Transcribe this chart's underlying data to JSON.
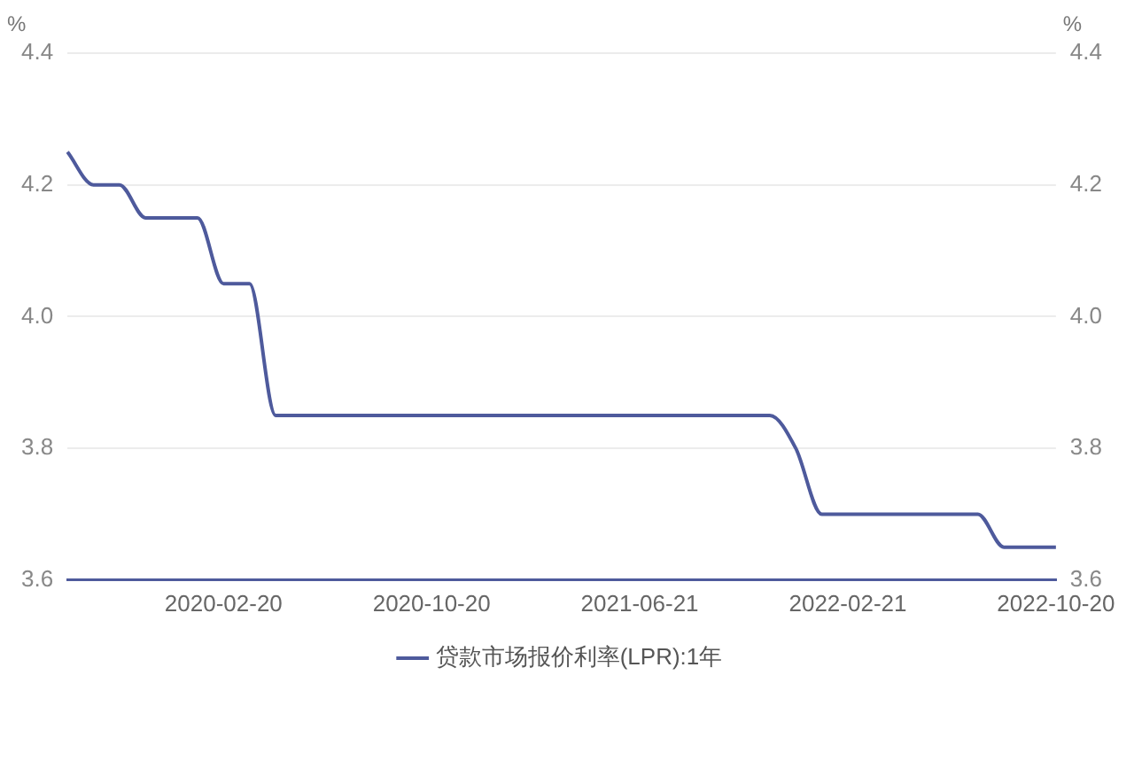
{
  "chart_data": {
    "type": "line",
    "ylabel": "%",
    "y2label": "%",
    "categories": [
      null,
      null,
      null,
      null,
      null,
      null,
      "2020-02-20",
      null,
      null,
      null,
      null,
      null,
      null,
      null,
      "2020-10-20",
      null,
      null,
      null,
      null,
      null,
      null,
      null,
      "2021-06-21",
      null,
      null,
      null,
      null,
      null,
      null,
      null,
      "2022-02-21",
      null,
      null,
      null,
      null,
      null,
      null,
      null,
      "2022-10-20"
    ],
    "series": [
      {
        "name": "贷款市场报价利率(LPR):1年",
        "color": "#4e5a9c",
        "values": [
          4.25,
          4.2,
          4.2,
          4.15,
          4.15,
          4.15,
          4.05,
          4.05,
          3.85,
          3.85,
          3.85,
          3.85,
          3.85,
          3.85,
          3.85,
          3.85,
          3.85,
          3.85,
          3.85,
          3.85,
          3.85,
          3.85,
          3.85,
          3.85,
          3.85,
          3.85,
          3.85,
          3.85,
          3.8,
          3.7,
          3.7,
          3.7,
          3.7,
          3.7,
          3.7,
          3.7,
          3.65,
          3.65,
          3.65
        ]
      }
    ],
    "ylim": [
      3.6,
      4.4
    ],
    "yticks": [
      3.6,
      3.8,
      {
        "value": 4,
        "label": "4.0"
      },
      4.2,
      4.4
    ],
    "y2lim": [
      3.6,
      4.4
    ],
    "y2ticks": [
      3.6,
      3.8,
      {
        "value": 4,
        "label": "4.0"
      },
      4.2,
      4.4
    ],
    "grid": "y",
    "legend": "bottom",
    "marker": "none",
    "line_style": "solid"
  }
}
